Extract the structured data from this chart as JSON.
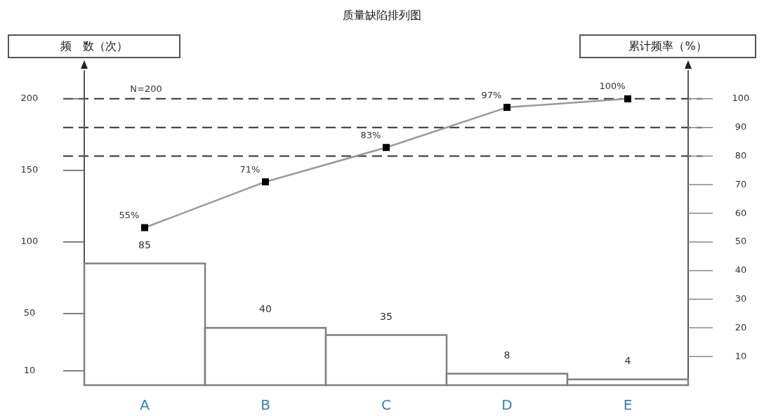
{
  "chart_data": {
    "type": "bar",
    "title": "质量缺陷排列图",
    "ylabel": "频　数（次）",
    "y2label": "累计频率（%）",
    "categories": [
      "A",
      "B",
      "C",
      "D",
      "E"
    ],
    "series": [
      {
        "color": "#808080",
        "values": [
          85,
          40,
          35,
          8,
          4
        ]
      },
      {
        "type": "line",
        "axis": "y2",
        "color": "#999999",
        "marker": "square",
        "values": [
          55,
          71,
          83,
          97,
          100
        ],
        "value_labels": [
          "55%",
          "71%",
          "83%",
          "97%",
          "100%"
        ]
      }
    ],
    "data_labels": true,
    "ylim": [
      0,
      220
    ],
    "yticks": [
      10,
      50,
      100,
      150,
      200
    ],
    "y2lim": [
      0,
      110
    ],
    "y2ticks": [
      10,
      20,
      30,
      40,
      50,
      60,
      70,
      80,
      90,
      100
    ],
    "ref_lines": [
      {
        "axis": "y2",
        "value": 100,
        "line_style": "dashed",
        "color": "#333333"
      },
      {
        "axis": "y2",
        "value": 90,
        "line_style": "dashed",
        "color": "#333333"
      },
      {
        "axis": "y2",
        "value": 80,
        "line_style": "dashed",
        "color": "#333333"
      }
    ],
    "annotations": [
      "N=200"
    ]
  }
}
